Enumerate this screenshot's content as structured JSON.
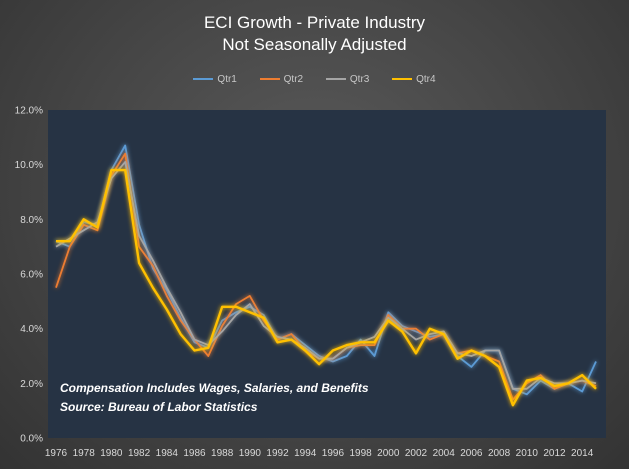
{
  "chart_data": {
    "type": "line",
    "title": "ECI Growth - Private Industry",
    "subtitle": "Not Seasonally Adjusted",
    "xlabel": "",
    "ylabel": "",
    "ylim": [
      0,
      12
    ],
    "y_ticks": [
      "0.0%",
      "2.0%",
      "4.0%",
      "6.0%",
      "8.0%",
      "10.0%",
      "12.0%"
    ],
    "x_tick_labels": [
      "1976",
      "1978",
      "1980",
      "1982",
      "1984",
      "1986",
      "1988",
      "1990",
      "1992",
      "1994",
      "1996",
      "1998",
      "2000",
      "2002",
      "2004",
      "2006",
      "2008",
      "2010",
      "2012",
      "2014"
    ],
    "x_tick_years": [
      1976,
      1978,
      1980,
      1982,
      1984,
      1986,
      1988,
      1990,
      1992,
      1994,
      1996,
      1998,
      2000,
      2002,
      2004,
      2006,
      2008,
      2010,
      2012,
      2014
    ],
    "x": [
      1976,
      1977,
      1978,
      1979,
      1980,
      1981,
      1982,
      1983,
      1984,
      1985,
      1986,
      1987,
      1988,
      1989,
      1990,
      1991,
      1992,
      1993,
      1994,
      1995,
      1996,
      1997,
      1998,
      1999,
      2000,
      2001,
      2002,
      2003,
      2004,
      2005,
      2006,
      2007,
      2008,
      2009,
      2010,
      2011,
      2012,
      2013,
      2014,
      2015
    ],
    "legend_position": "top",
    "grid": false,
    "series": [
      {
        "name": "Qtr1",
        "color": "#5b9bd5",
        "values": [
          7.2,
          7.0,
          7.9,
          7.8,
          9.8,
          10.7,
          7.8,
          6.2,
          5.4,
          4.4,
          3.5,
          3.3,
          4.3,
          4.6,
          4.8,
          4.5,
          3.6,
          3.8,
          3.4,
          3.0,
          2.8,
          3.0,
          3.6,
          3.0,
          4.6,
          4.1,
          3.9,
          3.7,
          3.8,
          3.0,
          2.6,
          3.2,
          3.2,
          1.8,
          1.6,
          2.1,
          1.8,
          2.0,
          1.7,
          2.8
        ]
      },
      {
        "name": "Qtr2",
        "color": "#ed7d31",
        "values": [
          5.5,
          7.0,
          7.8,
          7.6,
          9.6,
          10.4,
          7.0,
          6.3,
          5.2,
          4.3,
          3.6,
          3.0,
          4.1,
          4.9,
          5.2,
          4.3,
          3.6,
          3.8,
          3.2,
          2.9,
          2.9,
          3.3,
          3.4,
          3.4,
          4.5,
          4.0,
          4.0,
          3.6,
          3.8,
          3.1,
          3.2,
          3.0,
          2.8,
          1.4,
          2.0,
          2.3,
          1.8,
          2.0,
          2.1,
          1.9
        ]
      },
      {
        "name": "Qtr3",
        "color": "#a5a5a5",
        "values": [
          7.0,
          7.3,
          7.6,
          7.9,
          9.5,
          10.1,
          7.4,
          6.5,
          5.5,
          4.6,
          3.6,
          3.4,
          3.9,
          4.5,
          4.9,
          4.1,
          3.7,
          3.6,
          3.3,
          2.9,
          2.9,
          3.3,
          3.5,
          3.7,
          4.4,
          4.0,
          3.6,
          3.8,
          3.9,
          3.1,
          3.0,
          3.2,
          3.2,
          1.8,
          1.8,
          2.2,
          2.0,
          2.0,
          2.1,
          2.0
        ]
      },
      {
        "name": "Qtr4",
        "color": "#ffc000",
        "values": [
          7.2,
          7.2,
          8.0,
          7.7,
          9.8,
          9.8,
          6.4,
          5.5,
          4.7,
          3.8,
          3.2,
          3.3,
          4.8,
          4.8,
          4.6,
          4.4,
          3.5,
          3.6,
          3.2,
          2.7,
          3.2,
          3.4,
          3.5,
          3.5,
          4.3,
          3.9,
          3.1,
          4.0,
          3.8,
          2.9,
          3.2,
          3.0,
          2.6,
          1.2,
          2.1,
          2.2,
          1.9,
          2.0,
          2.3,
          1.8
        ]
      }
    ],
    "annotations": [
      "Compensation Includes Wages, Salaries, and Benefits",
      "Source:  Bureau of Labor Statistics"
    ]
  }
}
